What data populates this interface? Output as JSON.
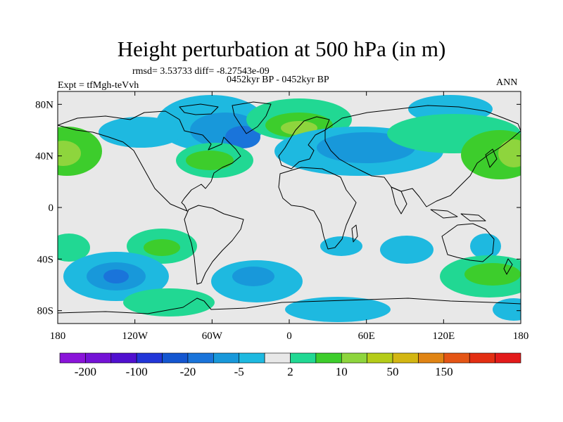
{
  "title": "Height perturbation at 500 hPa (in m)",
  "stats_text": "rmsd= 3.53733 diff= -8.27543e-09",
  "left_label": "Expt = tfMgh-teVvh",
  "center_label": "0452kyr BP - 0452kyr BP",
  "right_label": "ANN",
  "map": {
    "projection": "cylindrical-equidistant",
    "lon_range": [
      -180,
      180
    ],
    "lat_range": [
      -90,
      90
    ],
    "ocean_color": "#e8e8e8",
    "coastline_color": "#000000",
    "lat_ticks": [
      {
        "lat": 80,
        "label": "80N"
      },
      {
        "lat": 40,
        "label": "40N"
      },
      {
        "lat": 0,
        "label": "0"
      },
      {
        "lat": -40,
        "label": "40S"
      },
      {
        "lat": -80,
        "label": "80S"
      }
    ],
    "lon_ticks": [
      {
        "lon": -180,
        "label": "180"
      },
      {
        "lon": -120,
        "label": "120W"
      },
      {
        "lon": -60,
        "label": "60W"
      },
      {
        "lon": 0,
        "label": "0"
      },
      {
        "lon": 60,
        "label": "60E"
      },
      {
        "lon": 120,
        "label": "120E"
      },
      {
        "lon": 180,
        "label": "180"
      }
    ]
  },
  "colorbar": {
    "colors": [
      "#8a14d9",
      "#7413d6",
      "#5010cf",
      "#2236d8",
      "#1456d0",
      "#1a74da",
      "#1898da",
      "#1eb9e0",
      "#e8e8e8",
      "#21d893",
      "#3dcd2c",
      "#8ed53d",
      "#b5cc18",
      "#d3b612",
      "#e08414",
      "#e45515",
      "#e32e12",
      "#e31a1a"
    ],
    "labels": [
      {
        "text": "-200",
        "boundary": 1
      },
      {
        "text": "-100",
        "boundary": 3
      },
      {
        "text": "-20",
        "boundary": 5
      },
      {
        "text": "-5",
        "boundary": 7
      },
      {
        "text": "2",
        "boundary": 9
      },
      {
        "text": "10",
        "boundary": 11
      },
      {
        "text": "50",
        "boundary": 13
      },
      {
        "text": "150",
        "boundary": 15
      }
    ]
  }
}
